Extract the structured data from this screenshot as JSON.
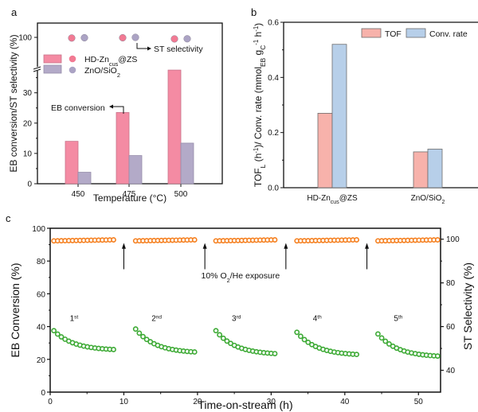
{
  "chart_data": [
    {
      "panel": "a",
      "type": "bar",
      "title": "",
      "xlabel": "Temperature (°C)",
      "ylabel": "EB conversion/ST selectivity (%)",
      "categories": [
        "450",
        "475",
        "500"
      ],
      "series": [
        {
          "name": "HD-Zn_cus@ZS",
          "label_main": "HD-Zn",
          "label_sub": "cus",
          "label_tail": "@ZS",
          "kind": "bar",
          "metric": "EB conversion",
          "values": [
            14.0,
            23.5,
            37.5
          ],
          "color": "#F48BA3"
        },
        {
          "name": "ZnO/SiO2",
          "label_main": "ZnO/SiO",
          "label_sub": "2",
          "label_tail": "",
          "kind": "bar",
          "metric": "EB conversion",
          "values": [
            3.8,
            9.3,
            13.4
          ],
          "color": "#B3AAC8"
        }
      ],
      "scatter_series": [
        {
          "name": "HD-Zn_cus@ZS",
          "metric": "ST selectivity",
          "values": [
            99.5,
            99.7,
            98.8
          ],
          "color": "#F27A93"
        },
        {
          "name": "ZnO/SiO2",
          "metric": "ST selectivity",
          "values": [
            99.7,
            100.0,
            98.9
          ],
          "color": "#ABA3C4"
        }
      ],
      "ylim_lower": [
        0,
        37
      ],
      "ylim_upper_label": "100",
      "yticks": [
        "0",
        "10",
        "20",
        "30",
        "100"
      ],
      "axis_break": true,
      "annotations": [
        "EB conversion",
        "ST selectivity"
      ],
      "legend_position": "upper-left"
    },
    {
      "panel": "b",
      "type": "bar",
      "title": "",
      "xlabel": "",
      "ylabel": "TOF_L (h^-1)/ Conv. rate (mmol_EB g_C^-1 h^-1)",
      "categories": [
        "HD-Zn_cus@ZS",
        "ZnO/SiO2"
      ],
      "series": [
        {
          "name": "TOF",
          "values": [
            0.27,
            0.13
          ],
          "color": "#F7B2AB"
        },
        {
          "name": "Conv. rate",
          "values": [
            0.52,
            0.14
          ],
          "color": "#B7CFE9"
        }
      ],
      "ylim": [
        0,
        0.6
      ],
      "yticks": [
        "0.0",
        "0.2",
        "0.4",
        "0.6"
      ],
      "legend_position": "top-right"
    },
    {
      "panel": "c",
      "type": "scatter",
      "title": "",
      "xlabel": "Time-on-stream (h)",
      "ylabel": "EB Conversion (%)",
      "ylabel_right": "ST Selectivity (%)",
      "xlim": [
        0,
        53
      ],
      "ylim": [
        0,
        100
      ],
      "ylim_right": [
        30,
        105
      ],
      "xticks": [
        "0",
        "10",
        "20",
        "30",
        "40",
        "50"
      ],
      "yticks": [
        "0",
        "20",
        "40",
        "60",
        "80",
        "100"
      ],
      "yticks_right": [
        "40",
        "60",
        "80",
        "100"
      ],
      "cycles": [
        {
          "label": "1",
          "sup": "st",
          "t_start": 0.5,
          "t_end": 8.6,
          "conv_start": 37.5,
          "conv_end": 26.0,
          "selectivity": 99.3
        },
        {
          "label": "2",
          "sup": "nd",
          "t_start": 11.6,
          "t_end": 19.6,
          "conv_start": 38.5,
          "conv_end": 24.5,
          "selectivity": 99.3
        },
        {
          "label": "3",
          "sup": "rd",
          "t_start": 22.5,
          "t_end": 30.5,
          "conv_start": 37.5,
          "conv_end": 23.5,
          "selectivity": 99.3
        },
        {
          "label": "4",
          "sup": "th",
          "t_start": 33.5,
          "t_end": 41.6,
          "conv_start": 36.5,
          "conv_end": 23.0,
          "selectivity": 99.3
        },
        {
          "label": "5",
          "sup": "th",
          "t_start": 44.5,
          "t_end": 52.6,
          "conv_start": 35.5,
          "conv_end": 22.0,
          "selectivity": 99.3
        }
      ],
      "regeneration_times": [
        10,
        21,
        32,
        43
      ],
      "points_per_cycle": 17,
      "annotation": "10% O2/He exposure",
      "colors": {
        "conversion": "#3DAA35",
        "selectivity": "#F57F1E"
      }
    }
  ],
  "labels": {
    "panel_a": "a",
    "panel_b": "b",
    "panel_c": "c",
    "a_xlabel": "Temperature (°C)",
    "a_ylabel": "EB conversion/ST selectivity (%)",
    "a_ann_conv": "EB conversion",
    "a_ann_sel": "ST selectivity",
    "b_leg_tof": "TOF",
    "b_leg_rate": "Conv. rate",
    "c_xlabel": "Time-on-stream (h)",
    "c_ylabel": "EB Conversion (%)",
    "c_ylabel_right": "ST Selectivity (%)",
    "c_ann_pre": "10% O",
    "c_ann_sub": "2",
    "c_ann_post": "/He exposure"
  }
}
